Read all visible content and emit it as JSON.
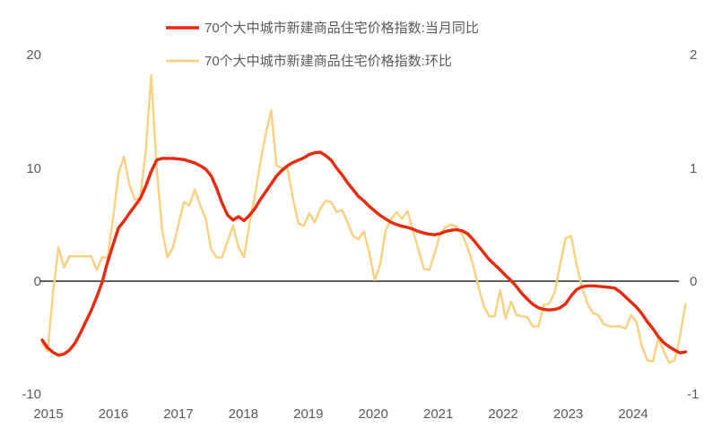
{
  "legend": {
    "items": [
      {
        "label": "70个大中城市新建商品住宅价格指数:当月同比",
        "color": "#e8290c"
      },
      {
        "label": "70个大中城市新建商品住宅价格指数:环比",
        "color": "#fad183"
      }
    ]
  },
  "axes": {
    "left_ticks": [
      "20",
      "10",
      "0",
      "-10"
    ],
    "right_ticks": [
      "2",
      "1",
      "0",
      "-1"
    ],
    "x_ticks": [
      "2015",
      "2016",
      "2017",
      "2018",
      "2019",
      "2020",
      "2021",
      "2022",
      "2023",
      "2024"
    ]
  },
  "theme": {
    "text_color": "#595959",
    "zero_line_color": "#000000",
    "background": "#ffffff"
  },
  "chart_data": {
    "type": "line",
    "title": "",
    "x_freq": "monthly",
    "x_start": "2015-01",
    "x_end": "2024-11",
    "gridlines": false,
    "legend_position": "top",
    "left_axis": {
      "label": "",
      "min": -10,
      "max": 20,
      "ticks": [
        20,
        10,
        0,
        -10
      ]
    },
    "right_axis": {
      "label": "",
      "min": -1,
      "max": 2,
      "ticks": [
        2,
        1,
        0,
        -1
      ]
    },
    "zero_line": true,
    "series": [
      {
        "name": "70个大中城市新建商品住宅价格指数:当月同比",
        "axis": "left",
        "color": "#e8290c",
        "width": 3.4,
        "values": [
          -5.2,
          -5.9,
          -6.3,
          -6.55,
          -6.45,
          -6.1,
          -5.5,
          -4.6,
          -3.6,
          -2.6,
          -1.4,
          -0.1,
          1.7,
          3.2,
          4.7,
          5.3,
          6.0,
          6.65,
          7.3,
          8.4,
          9.7,
          10.7,
          10.85,
          10.85,
          10.85,
          10.8,
          10.75,
          10.6,
          10.45,
          10.2,
          9.9,
          9.3,
          8.2,
          6.9,
          5.85,
          5.4,
          5.7,
          5.35,
          5.8,
          6.4,
          7.2,
          7.9,
          8.6,
          9.3,
          9.8,
          10.2,
          10.5,
          10.7,
          10.9,
          11.2,
          11.35,
          11.4,
          11.1,
          10.7,
          10.0,
          9.4,
          8.7,
          8.1,
          7.5,
          7.1,
          6.6,
          6.2,
          5.8,
          5.5,
          5.2,
          5.0,
          4.85,
          4.75,
          4.6,
          4.4,
          4.25,
          4.15,
          4.1,
          4.2,
          4.4,
          4.5,
          4.55,
          4.45,
          4.2,
          3.7,
          3.1,
          2.5,
          1.9,
          1.45,
          1.0,
          0.5,
          0.05,
          -0.5,
          -1.1,
          -1.6,
          -2.05,
          -2.35,
          -2.5,
          -2.55,
          -2.5,
          -2.35,
          -2.0,
          -1.3,
          -0.75,
          -0.5,
          -0.42,
          -0.42,
          -0.45,
          -0.5,
          -0.55,
          -0.62,
          -0.95,
          -1.4,
          -1.85,
          -2.3,
          -2.9,
          -3.6,
          -4.2,
          -4.9,
          -5.45,
          -5.8,
          -6.1,
          -6.35,
          -6.25
        ]
      },
      {
        "name": "70个大中城市新建商品住宅价格指数:环比",
        "axis": "right",
        "color": "#fad183",
        "width": 2.5,
        "values": [
          -0.55,
          -0.62,
          -0.1,
          0.3,
          0.12,
          0.22,
          0.22,
          0.22,
          0.22,
          0.22,
          0.1,
          0.21,
          0.21,
          0.55,
          0.95,
          1.1,
          0.85,
          0.72,
          0.74,
          1.15,
          1.82,
          1.0,
          0.45,
          0.21,
          0.3,
          0.5,
          0.7,
          0.67,
          0.81,
          0.67,
          0.55,
          0.28,
          0.21,
          0.21,
          0.35,
          0.49,
          0.3,
          0.21,
          0.5,
          0.75,
          1.05,
          1.3,
          1.51,
          1.02,
          1.0,
          1.0,
          0.73,
          0.51,
          0.49,
          0.6,
          0.52,
          0.64,
          0.71,
          0.7,
          0.61,
          0.63,
          0.52,
          0.4,
          0.37,
          0.44,
          0.25,
          0.01,
          0.15,
          0.45,
          0.55,
          0.61,
          0.55,
          0.62,
          0.45,
          0.28,
          0.11,
          0.1,
          0.25,
          0.42,
          0.48,
          0.5,
          0.48,
          0.42,
          0.3,
          0.15,
          -0.05,
          -0.22,
          -0.31,
          -0.31,
          -0.08,
          -0.33,
          -0.18,
          -0.3,
          -0.31,
          -0.32,
          -0.4,
          -0.4,
          -0.21,
          -0.2,
          -0.1,
          0.15,
          0.38,
          0.4,
          0.15,
          -0.05,
          -0.2,
          -0.28,
          -0.3,
          -0.38,
          -0.4,
          -0.4,
          -0.4,
          -0.42,
          -0.3,
          -0.36,
          -0.58,
          -0.7,
          -0.71,
          -0.5,
          -0.62,
          -0.72,
          -0.7,
          -0.48,
          -0.2
        ]
      }
    ]
  }
}
